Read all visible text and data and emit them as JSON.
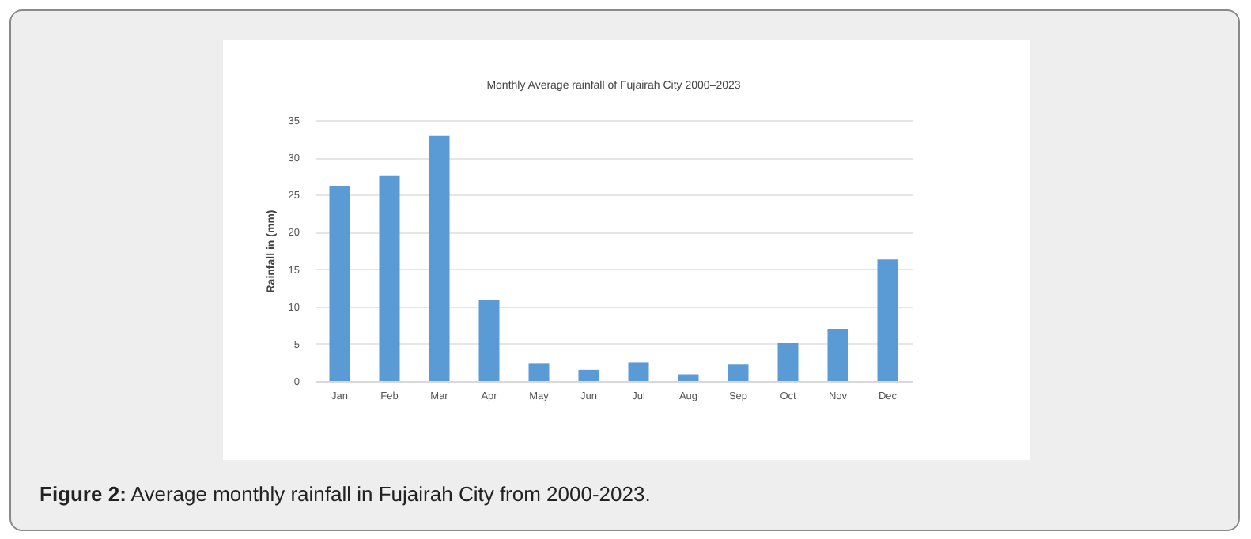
{
  "chart_data": {
    "type": "bar",
    "title": "Monthly Average rainfall of Fujairah City 2000–2023",
    "ylabel": "Rainfall in (mm)",
    "categories": [
      "Jan",
      "Feb",
      "Mar",
      "Apr",
      "May",
      "Jun",
      "Jul",
      "Aug",
      "Sep",
      "Oct",
      "Nov",
      "Dec"
    ],
    "values": [
      26.2,
      27.5,
      32.9,
      10.9,
      2.4,
      1.5,
      2.5,
      0.9,
      2.2,
      5.1,
      7.0,
      16.3
    ],
    "color": "#5b9bd5",
    "ylim": [
      0,
      35
    ],
    "yticks": [
      0,
      5,
      10,
      15,
      20,
      25,
      30,
      35
    ],
    "grid": "y",
    "annotations": [
      "Figure 2: Average monthly rainfall in Fujairah City from 2000-2023."
    ]
  }
}
